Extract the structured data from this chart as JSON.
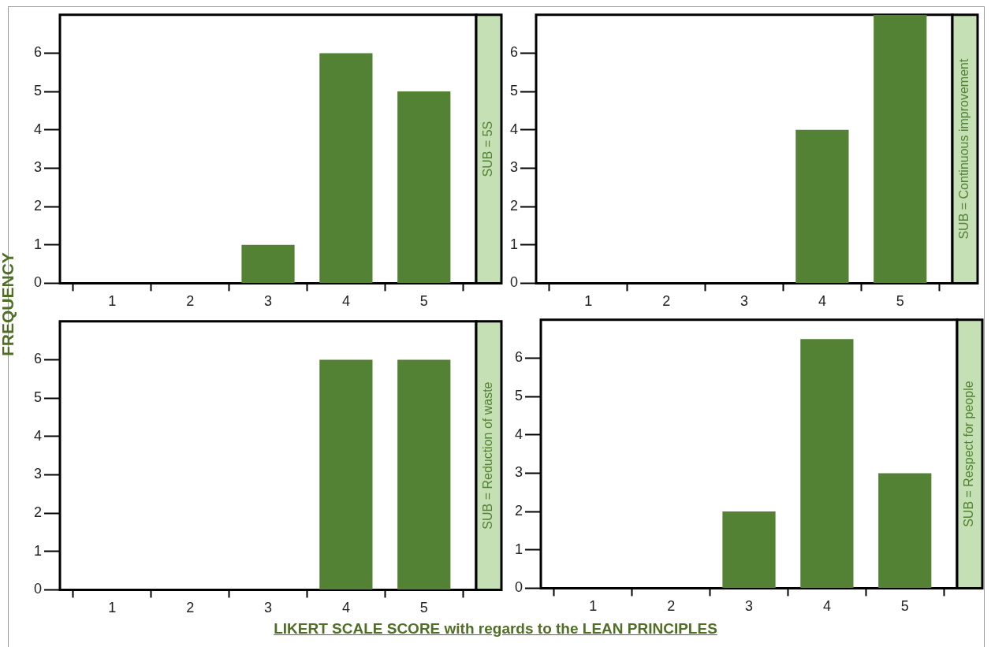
{
  "chart_data": [
    {
      "type": "bar",
      "title": "SUB = 5S",
      "ylabel": "FREQUENCY",
      "x": [
        1,
        2,
        3,
        4,
        5
      ],
      "values": [
        0,
        0,
        1,
        6,
        5
      ],
      "color": "#548235",
      "xlim": [
        0.33,
        5.67
      ],
      "xticks": [
        1,
        2,
        3,
        4,
        5
      ],
      "ylim": [
        0,
        7
      ],
      "yticks": [
        0,
        1,
        2,
        3,
        4,
        5,
        6
      ],
      "grid": false,
      "legend": false
    },
    {
      "type": "bar",
      "title": "SUB = Continuous improvement",
      "x": [
        1,
        2,
        3,
        4,
        5
      ],
      "values": [
        0,
        0,
        0,
        4,
        7
      ],
      "color": "#548235",
      "xlim": [
        0.33,
        5.67
      ],
      "xticks": [
        1,
        2,
        3,
        4,
        5
      ],
      "ylim": [
        0,
        7
      ],
      "yticks": [
        0,
        1,
        2,
        3,
        4,
        5,
        6
      ],
      "grid": false,
      "legend": false
    },
    {
      "type": "bar",
      "title": "SUB = Reduction of waste",
      "x": [
        1,
        2,
        3,
        4,
        5
      ],
      "values": [
        0,
        0,
        0,
        6,
        6
      ],
      "color": "#548235",
      "xlim": [
        0.33,
        5.67
      ],
      "xticks": [
        1,
        2,
        3,
        4,
        5
      ],
      "ylim": [
        0,
        7
      ],
      "yticks": [
        0,
        1,
        2,
        3,
        4,
        5,
        6
      ],
      "grid": false,
      "legend": false
    },
    {
      "type": "bar",
      "title": "SUB = Respect for people",
      "xlabel": "LIKERT SCALE SCORE with regards to the LEAN PRINCIPLES",
      "x": [
        1,
        2,
        3,
        4,
        5
      ],
      "values": [
        0,
        0,
        2,
        6.5,
        3
      ],
      "color": "#548235",
      "xlim": [
        0.33,
        5.67
      ],
      "xticks": [
        1,
        2,
        3,
        4,
        5
      ],
      "ylim": [
        0,
        7
      ],
      "yticks": [
        0,
        1,
        2,
        3,
        4,
        5,
        6
      ],
      "grid": false,
      "legend": false
    }
  ]
}
